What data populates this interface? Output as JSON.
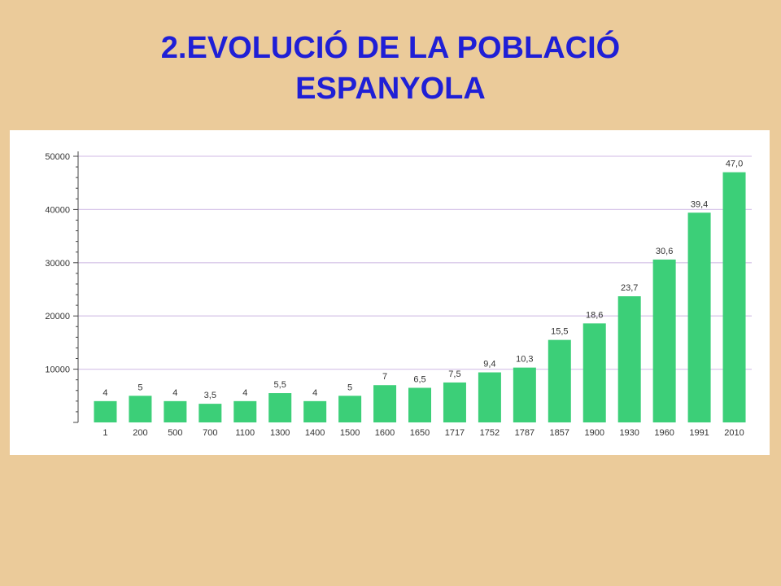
{
  "slide": {
    "title_line1": "2.EVOLUCIÓ DE LA POBLACIÓ",
    "title_line2": "ESPANYOLA",
    "title_color": "#1F1FD6",
    "background": "#EBCB9A"
  },
  "chart_data": {
    "type": "bar",
    "categories": [
      "1",
      "200",
      "500",
      "700",
      "1100",
      "1300",
      "1400",
      "1500",
      "1600",
      "1650",
      "1717",
      "1752",
      "1787",
      "1857",
      "1900",
      "1930",
      "1960",
      "1991",
      "2010"
    ],
    "values": [
      4000,
      5000,
      4000,
      3500,
      4000,
      5500,
      4000,
      5000,
      7000,
      6500,
      7500,
      9400,
      10300,
      15500,
      18600,
      23700,
      30600,
      39400,
      47000
    ],
    "data_labels": [
      "4",
      "5",
      "4",
      "3,5",
      "4",
      "5,5",
      "4",
      "5",
      "7",
      "6,5",
      "7,5",
      "9,4",
      "10,3",
      "15,5",
      "18,6",
      "23,7",
      "30,6",
      "39,4",
      "47,0"
    ],
    "y_ticks": [
      "10000",
      "20000",
      "30000",
      "40000",
      "50000"
    ],
    "ylim": [
      0,
      50000
    ],
    "title": "",
    "xlabel": "",
    "ylabel": "",
    "grid": true,
    "bar_color": "#3CCF78",
    "grid_color": "#D9C8EA"
  }
}
